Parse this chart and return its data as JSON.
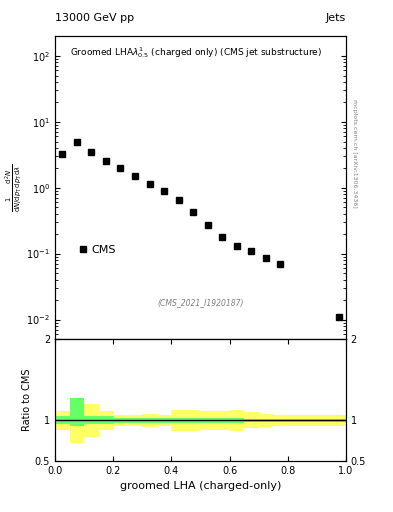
{
  "title_top": "13000 GeV pp",
  "title_right": "Jets",
  "main_title": "Groomed LHAλ$^1_{0.5}$ (charged only) (CMS jet substructure)",
  "xlabel": "groomed LHA (charged-only)",
  "ylabel_main": "\\frac{1}{\\mathrm{d}N / \\mathrm{d}p_\\mathrm{T}} \\frac{\\mathrm{d}^2 N}{\\mathrm{d}p_\\mathrm{T} \\, \\mathrm{d}\\lambda}",
  "ylabel_ratio": "Ratio to CMS",
  "cms_label": "CMS",
  "inspire_label": "(CMS_2021_I1920187)",
  "mcplots_label": "mcplots.cern.ch [arXiv:1306.3436]",
  "data_x": [
    0.025,
    0.075,
    0.125,
    0.175,
    0.225,
    0.275,
    0.325,
    0.375,
    0.425,
    0.475,
    0.525,
    0.575,
    0.625,
    0.675,
    0.725,
    0.775,
    0.975
  ],
  "data_y": [
    3.2,
    5.0,
    3.5,
    2.5,
    2.0,
    1.5,
    1.15,
    0.9,
    0.65,
    0.42,
    0.27,
    0.18,
    0.13,
    0.11,
    0.085,
    0.07,
    0.011
  ],
  "ratio_x_centers": [
    0.025,
    0.075,
    0.125,
    0.175,
    0.225,
    0.275,
    0.325,
    0.375,
    0.425,
    0.475,
    0.525,
    0.575,
    0.625,
    0.675,
    0.725,
    0.775,
    0.825,
    0.875,
    0.925,
    0.975
  ],
  "ratio_yellow_lo": [
    0.88,
    0.72,
    0.8,
    0.88,
    0.93,
    0.93,
    0.92,
    0.93,
    0.87,
    0.87,
    0.88,
    0.88,
    0.87,
    0.9,
    0.92,
    0.93,
    0.93,
    0.93,
    0.93,
    0.93
  ],
  "ratio_yellow_hi": [
    1.12,
    1.28,
    1.2,
    1.12,
    1.07,
    1.07,
    1.08,
    1.07,
    1.13,
    1.13,
    1.12,
    1.12,
    1.13,
    1.1,
    1.08,
    1.07,
    1.07,
    1.07,
    1.07,
    1.07
  ],
  "ratio_green_lo": [
    0.95,
    0.93,
    0.96,
    0.96,
    0.97,
    0.97,
    0.97,
    0.97,
    0.97,
    0.97,
    0.97,
    0.97,
    0.97,
    0.98,
    0.98,
    0.98,
    0.98,
    0.98,
    0.98,
    0.98
  ],
  "ratio_green_hi": [
    1.05,
    1.27,
    1.05,
    1.05,
    1.03,
    1.03,
    1.03,
    1.03,
    1.03,
    1.03,
    1.03,
    1.03,
    1.03,
    1.02,
    1.02,
    1.02,
    1.02,
    1.02,
    1.02,
    1.02
  ],
  "bin_width": 0.05,
  "ylim_main": [
    0.005,
    200
  ],
  "ylim_ratio": [
    0.5,
    2.0
  ],
  "xlim": [
    0.0,
    1.0
  ],
  "marker_color": "black",
  "marker_size": 5,
  "yellow_color": "#ffff66",
  "green_color": "#66ff66",
  "line_color": "black",
  "background_color": "white",
  "grid_color": "#dddddd"
}
